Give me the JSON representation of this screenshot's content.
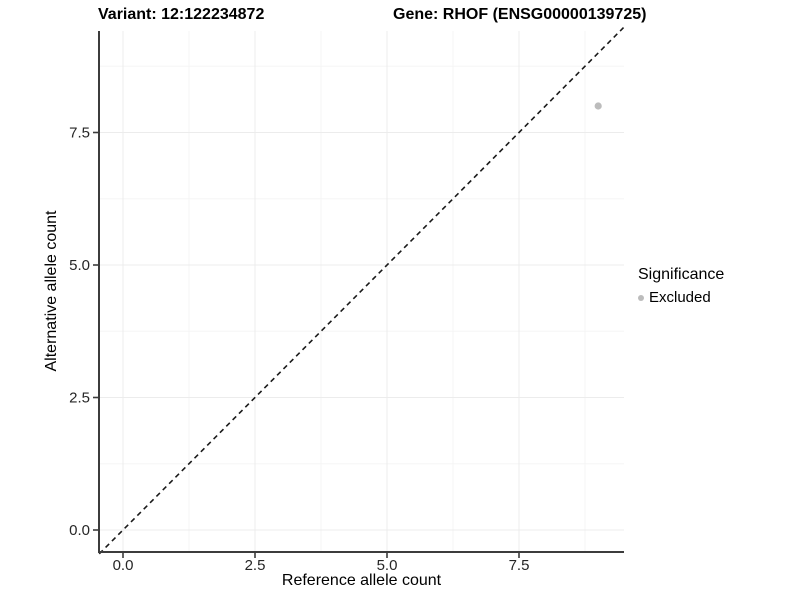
{
  "titles": {
    "variant": "Variant: 12:122234872",
    "gene": "Gene: RHOF (ENSG00000139725)"
  },
  "chart_data": {
    "type": "scatter",
    "xlabel": "Reference allele count",
    "ylabel": "Alternative allele count",
    "x_ticks": [
      0.0,
      2.5,
      5.0,
      7.5
    ],
    "x_tick_labels": [
      "0.0",
      "2.5",
      "5.0",
      "7.5"
    ],
    "y_ticks": [
      0.0,
      2.5,
      5.0,
      7.5
    ],
    "y_tick_labels": [
      "0.0",
      "2.5",
      "5.0",
      "7.5"
    ],
    "xlim": [
      -0.46,
      9.5
    ],
    "ylim": [
      -0.42,
      9.45
    ],
    "grid": true,
    "points": [
      {
        "x": 9,
        "y": 8,
        "significance": "Excluded"
      }
    ],
    "reference_line": {
      "type": "identity",
      "slope": 1,
      "intercept": 0,
      "style": "dashed",
      "color": "#1a1a1a"
    },
    "legend": {
      "title": "Significance",
      "position": "right",
      "items": [
        {
          "label": "Excluded",
          "color": "#bcbcbc"
        }
      ]
    },
    "colors": {
      "axis_line": "#3c3c3c",
      "tick_mark": "#3c3c3c",
      "tick_label": "#262626",
      "grid_major": "#ececec",
      "grid_minor": "#f5f5f5",
      "point": "#c2c2c2"
    }
  }
}
